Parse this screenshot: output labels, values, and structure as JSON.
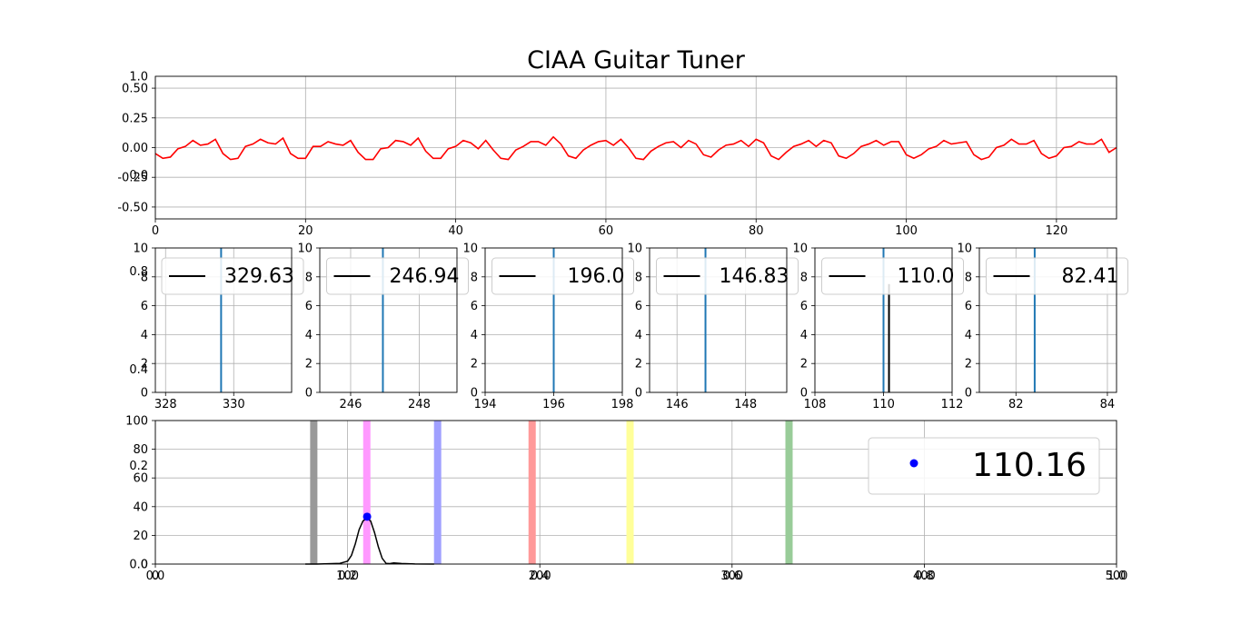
{
  "figure": {
    "title": "CIAA Guitar Tuner"
  },
  "chart_data": [
    {
      "id": "waveform",
      "type": "line",
      "title": "",
      "xlim": [
        0,
        128
      ],
      "ylim": [
        -0.6,
        0.6
      ],
      "xticks": [
        "0",
        "20",
        "40",
        "60",
        "80",
        "100",
        "120"
      ],
      "yticks": [
        "-0.50",
        "-0.25",
        "0.00",
        "0.25",
        "0.50"
      ],
      "overlay_yticks": [
        "0.0",
        "1.0"
      ],
      "grid": true,
      "series": [
        {
          "color": "#ff0000",
          "x": [
            0,
            1,
            2,
            3,
            4,
            5,
            6,
            7,
            8,
            9,
            10,
            11,
            12,
            13,
            14,
            15,
            16,
            17,
            18,
            19,
            20,
            21,
            22,
            23,
            24,
            25,
            26,
            27,
            28,
            29,
            30,
            31,
            32,
            33,
            34,
            35,
            36,
            37,
            38,
            39,
            40,
            41,
            42,
            43,
            44,
            45,
            46,
            47,
            48,
            49,
            50,
            51,
            52,
            53,
            54,
            55,
            56,
            57,
            58,
            59,
            60,
            61,
            62,
            63,
            64,
            65,
            66,
            67,
            68,
            69,
            70,
            71,
            72,
            73,
            74,
            75,
            76,
            77,
            78,
            79,
            80,
            81,
            82,
            83,
            84,
            85,
            86,
            87,
            88,
            89,
            90,
            91,
            92,
            93,
            94,
            95,
            96,
            97,
            98,
            99,
            100,
            101,
            102,
            103,
            104,
            105,
            106,
            107,
            108,
            109,
            110,
            111,
            112,
            113,
            114,
            115,
            116,
            117,
            118,
            119,
            120,
            121,
            122,
            123,
            124,
            125,
            126,
            127,
            128
          ],
          "y": [
            -0.05,
            -0.09,
            -0.08,
            -0.01,
            0.01,
            0.06,
            0.02,
            0.03,
            0.07,
            -0.05,
            -0.1,
            -0.09,
            0.01,
            0.03,
            0.07,
            0.04,
            0.03,
            0.08,
            -0.05,
            -0.09,
            -0.09,
            0.01,
            0.01,
            0.05,
            0.03,
            0.02,
            0.06,
            -0.04,
            -0.1,
            -0.1,
            -0.01,
            0.0,
            0.06,
            0.05,
            0.02,
            0.08,
            -0.03,
            -0.09,
            -0.09,
            -0.01,
            0.01,
            0.06,
            0.04,
            -0.01,
            0.06,
            -0.02,
            -0.09,
            -0.1,
            -0.02,
            0.01,
            0.05,
            0.05,
            0.02,
            0.09,
            0.03,
            -0.07,
            -0.09,
            -0.02,
            0.02,
            0.05,
            0.06,
            0.02,
            0.07,
            0.0,
            -0.09,
            -0.1,
            -0.03,
            0.01,
            0.04,
            0.05,
            -0.0,
            0.06,
            0.03,
            -0.06,
            -0.08,
            -0.02,
            0.02,
            0.03,
            0.06,
            0.01,
            0.07,
            0.04,
            -0.07,
            -0.1,
            -0.04,
            0.01,
            0.03,
            0.06,
            0.01,
            0.06,
            0.04,
            -0.07,
            -0.09,
            -0.05,
            0.01,
            0.03,
            0.06,
            0.02,
            0.05,
            0.05,
            -0.06,
            -0.09,
            -0.06,
            -0.01,
            0.01,
            0.06,
            0.03,
            0.04,
            0.05,
            -0.06,
            -0.1,
            -0.08,
            -0.0,
            0.02,
            0.07,
            0.03,
            0.03,
            0.06,
            -0.05,
            -0.09,
            -0.07,
            0.0,
            0.01,
            0.05,
            0.03,
            0.03,
            0.07,
            -0.04,
            0.0
          ]
        }
      ]
    },
    {
      "id": "string-e4",
      "type": "line",
      "xlim": [
        327.7,
        331.7
      ],
      "ylim": [
        0,
        10
      ],
      "xticks": [
        "328",
        "330"
      ],
      "yticks": [
        "0",
        "2",
        "4",
        "6",
        "8",
        "10"
      ],
      "overlay_yticks": [
        "0.4",
        "0.8"
      ],
      "grid": true,
      "target": 329.63,
      "target_color": "#1f77b4",
      "legend": {
        "label": "329.63",
        "loc": "upper center"
      }
    },
    {
      "id": "string-b3",
      "type": "line",
      "xlim": [
        245.1,
        249.1
      ],
      "ylim": [
        0,
        10
      ],
      "xticks": [
        "246",
        "248"
      ],
      "yticks": [
        "0",
        "2",
        "4",
        "6",
        "8",
        "10"
      ],
      "grid": true,
      "target": 246.94,
      "target_color": "#1f77b4",
      "legend": {
        "label": "246.94",
        "loc": "upper center"
      }
    },
    {
      "id": "string-g3",
      "type": "line",
      "xlim": [
        194,
        198
      ],
      "ylim": [
        0,
        10
      ],
      "xticks": [
        "194",
        "196",
        "198"
      ],
      "yticks": [
        "0",
        "2",
        "4",
        "6",
        "8",
        "10"
      ],
      "grid": true,
      "target": 196.0,
      "target_color": "#1f77b4",
      "legend": {
        "label": "196.0",
        "loc": "upper center"
      }
    },
    {
      "id": "string-d3",
      "type": "line",
      "xlim": [
        145.2,
        149.2
      ],
      "ylim": [
        0,
        10
      ],
      "xticks": [
        "146",
        "148"
      ],
      "yticks": [
        "0",
        "2",
        "4",
        "6",
        "8",
        "10"
      ],
      "grid": true,
      "target": 146.83,
      "target_color": "#1f77b4",
      "legend": {
        "label": "146.83",
        "loc": "upper center"
      }
    },
    {
      "id": "string-a2",
      "type": "line",
      "xlim": [
        108,
        112
      ],
      "ylim": [
        0,
        10
      ],
      "xticks": [
        "108",
        "110",
        "112"
      ],
      "yticks": [
        "0",
        "2",
        "4",
        "6",
        "8",
        "10"
      ],
      "grid": true,
      "target": 110.0,
      "target_color": "#1f77b4",
      "measured": 110.16,
      "measured_color": "#000000",
      "legend": {
        "label": "110.0",
        "loc": "upper center"
      }
    },
    {
      "id": "string-e2",
      "type": "line",
      "xlim": [
        81.2,
        84.2
      ],
      "ylim": [
        0,
        10
      ],
      "xticks": [
        "82",
        "84"
      ],
      "yticks": [
        "0",
        "2",
        "4",
        "6",
        "8",
        "10"
      ],
      "grid": true,
      "target": 82.41,
      "target_color": "#1f77b4",
      "legend": {
        "label": "82.41",
        "loc": "upper center"
      }
    },
    {
      "id": "spectrum",
      "type": "line",
      "xlim": [
        0,
        500
      ],
      "ylim": [
        0,
        100
      ],
      "xticks": [
        "0",
        "100",
        "200",
        "300",
        "400",
        "500"
      ],
      "overlay_xticks": [
        "0.0",
        "0.2",
        "0.4",
        "0.6",
        "0.8",
        "1.0"
      ],
      "yticks": [
        "0",
        "20",
        "40",
        "60",
        "80",
        "100"
      ],
      "overlay_yticks": [
        "0.0",
        "0.2"
      ],
      "grid": true,
      "bands": [
        {
          "x": 82.41,
          "color": "#999999"
        },
        {
          "x": 110.0,
          "color": "#ff99ff"
        },
        {
          "x": 146.83,
          "color": "#a0a0ff"
        },
        {
          "x": 196.0,
          "color": "#ff9999"
        },
        {
          "x": 246.94,
          "color": "#ffff99"
        },
        {
          "x": 329.63,
          "color": "#99cc99"
        }
      ],
      "spectrum": {
        "color": "#000000",
        "x": [
          78,
          84,
          90,
          96,
          100,
          102,
          104,
          106,
          108,
          110,
          112,
          114,
          116,
          118,
          120,
          122,
          124,
          128,
          135,
          145
        ],
        "y": [
          0,
          0,
          0.2,
          0.5,
          2,
          6,
          14,
          24,
          30,
          32,
          30,
          22,
          12,
          4,
          0.5,
          0.3,
          0.8,
          0.4,
          0.1,
          0
        ]
      },
      "peak": {
        "x": 110.16,
        "y": 33,
        "color": "#0000ff"
      },
      "legend": {
        "label": "110.16",
        "loc": "upper right"
      }
    }
  ]
}
